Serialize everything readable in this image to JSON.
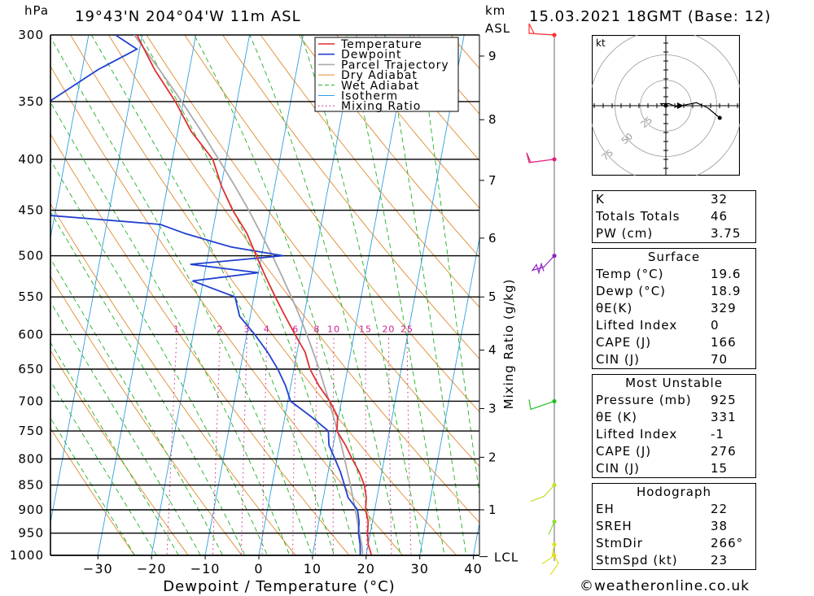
{
  "header": {
    "pressure_unit": "hPa",
    "location": "19°43'N  204°04'W  11m  ASL",
    "km_label": "km",
    "asl_label": "ASL",
    "datetime": "15.03.2021  18GMT  (Base: 12)"
  },
  "chart_data": {
    "type": "line",
    "xlabel": "Dewpoint / Temperature (°C)",
    "ylabel_right": "Mixing Ratio (g/kg)",
    "x_ticks": [
      -30,
      -20,
      -10,
      0,
      10,
      20,
      30,
      40
    ],
    "pressure_levels": [
      300,
      350,
      400,
      450,
      500,
      550,
      600,
      650,
      700,
      750,
      800,
      850,
      900,
      950,
      1000
    ],
    "km_ticks": [
      {
        "km": 1,
        "p": 900
      },
      {
        "km": 2,
        "p": 797
      },
      {
        "km": 3,
        "p": 712
      },
      {
        "km": 4,
        "p": 622
      },
      {
        "km": 5,
        "p": 550
      },
      {
        "km": 6,
        "p": 480
      },
      {
        "km": 7,
        "p": 420
      },
      {
        "km": 8,
        "p": 365
      },
      {
        "km": 9,
        "p": 315
      }
    ],
    "lcl_label": "LCL",
    "lcl_pressure": 1003,
    "mixing_ratio_labels": [
      1,
      2,
      3,
      4,
      6,
      8,
      10,
      15,
      20,
      25
    ],
    "legend": [
      "Temperature",
      "Dewpoint",
      "Parcel Trajectory",
      "Dry Adiabat",
      "Wet Adiabat",
      "Isotherm",
      "Mixing Ratio"
    ],
    "series": [
      {
        "name": "Temperature",
        "color": "#e03030",
        "points": [
          [
            1010,
            20.0
          ],
          [
            1000,
            21.0
          ],
          [
            975,
            20.0
          ],
          [
            950,
            19.5
          ],
          [
            925,
            19.2
          ],
          [
            900,
            18.3
          ],
          [
            875,
            18.0
          ],
          [
            850,
            17.2
          ],
          [
            825,
            15.8
          ],
          [
            800,
            14.0
          ],
          [
            775,
            12.3
          ],
          [
            750,
            10.2
          ],
          [
            725,
            9.8
          ],
          [
            700,
            7.8
          ],
          [
            675,
            5.2
          ],
          [
            650,
            3.0
          ],
          [
            625,
            1.5
          ],
          [
            600,
            -1.0
          ],
          [
            575,
            -3.5
          ],
          [
            550,
            -6.0
          ],
          [
            525,
            -8.5
          ],
          [
            500,
            -11.0
          ],
          [
            475,
            -13.5
          ],
          [
            450,
            -17.0
          ],
          [
            425,
            -20.0
          ],
          [
            400,
            -22.5
          ],
          [
            375,
            -27.5
          ],
          [
            350,
            -31.5
          ],
          [
            325,
            -36.5
          ],
          [
            300,
            -41.0
          ]
        ]
      },
      {
        "name": "Dewpoint",
        "color": "#2040d0",
        "points": [
          [
            1010,
            18.0
          ],
          [
            1000,
            18.9
          ],
          [
            975,
            18.5
          ],
          [
            950,
            17.8
          ],
          [
            925,
            17.5
          ],
          [
            900,
            16.8
          ],
          [
            875,
            14.6
          ],
          [
            850,
            13.5
          ],
          [
            825,
            12.3
          ],
          [
            800,
            10.8
          ],
          [
            775,
            9.2
          ],
          [
            750,
            8.6
          ],
          [
            725,
            4.8
          ],
          [
            700,
            0.5
          ],
          [
            675,
            -1.0
          ],
          [
            650,
            -3.0
          ],
          [
            625,
            -5.5
          ],
          [
            600,
            -8.5
          ],
          [
            575,
            -12.0
          ],
          [
            550,
            -13.5
          ],
          [
            530,
            -22.0
          ],
          [
            520,
            -10.0
          ],
          [
            510,
            -23.0
          ],
          [
            500,
            -6.0
          ],
          [
            490,
            -16.0
          ],
          [
            475,
            -25.0
          ],
          [
            465,
            -30.0
          ],
          [
            455,
            -52.0
          ],
          [
            450,
            -53.0
          ],
          [
            425,
            -53.0
          ],
          [
            400,
            -53.0
          ],
          [
            375,
            -55.0
          ],
          [
            350,
            -55.0
          ],
          [
            325,
            -47.0
          ],
          [
            310,
            -40.5
          ],
          [
            300,
            -45.0
          ]
        ]
      },
      {
        "name": "Parcel Trajectory",
        "color": "#aaaaaa",
        "points": [
          [
            1010,
            19.6
          ],
          [
            975,
            18.8
          ],
          [
            950,
            18.0
          ],
          [
            925,
            17.2
          ],
          [
            900,
            16.4
          ],
          [
            875,
            15.5
          ],
          [
            850,
            14.6
          ],
          [
            825,
            13.6
          ],
          [
            800,
            12.6
          ],
          [
            775,
            11.5
          ],
          [
            750,
            10.3
          ],
          [
            725,
            9.0
          ],
          [
            700,
            7.7
          ],
          [
            675,
            6.2
          ],
          [
            650,
            4.7
          ],
          [
            625,
            3.0
          ],
          [
            600,
            1.2
          ],
          [
            575,
            -0.8
          ],
          [
            550,
            -3.0
          ],
          [
            525,
            -5.4
          ],
          [
            500,
            -8.0
          ],
          [
            475,
            -10.9
          ],
          [
            450,
            -14.0
          ],
          [
            425,
            -17.5
          ],
          [
            400,
            -21.4
          ],
          [
            375,
            -25.6
          ],
          [
            350,
            -30.3
          ],
          [
            325,
            -35.6
          ],
          [
            300,
            -41.5
          ]
        ]
      }
    ],
    "wind_colors_by_level": [
      {
        "p": 300,
        "color": "#ff3030"
      },
      {
        "p": 400,
        "color": "#e0207a"
      },
      {
        "p": 500,
        "color": "#9020c0"
      },
      {
        "p": 700,
        "color": "#20c020"
      },
      {
        "p": 850,
        "color": "#c0e020"
      },
      {
        "p": 925,
        "color": "#90e030"
      },
      {
        "p": 975,
        "color": "#e0e020"
      },
      {
        "p": 1000,
        "color": "#e0e020"
      }
    ]
  },
  "hodograph": {
    "unit": "kt",
    "ring_labels": [
      25,
      50,
      75
    ],
    "trace_kt": [
      [
        0,
        0
      ],
      [
        -3,
        0
      ],
      [
        -5,
        2
      ],
      [
        3,
        2
      ],
      [
        8,
        0
      ],
      [
        3,
        2
      ],
      [
        8,
        0
      ],
      [
        10,
        -1
      ],
      [
        30,
        3
      ],
      [
        41,
        -2
      ],
      [
        53,
        -12
      ]
    ]
  },
  "indices": {
    "rows": [
      {
        "label": "K",
        "value": "32"
      },
      {
        "label": "Totals Totals",
        "value": "46"
      },
      {
        "label": "PW (cm)",
        "value": "3.75"
      }
    ],
    "surface": {
      "title": "Surface",
      "rows": [
        {
          "label": "Temp (°C)",
          "value": "19.6"
        },
        {
          "label": "Dewp (°C)",
          "value": "18.9"
        },
        {
          "label": "θE(K)",
          "value": "329"
        },
        {
          "label": "Lifted Index",
          "value": "0"
        },
        {
          "label": "CAPE (J)",
          "value": "166"
        },
        {
          "label": "CIN (J)",
          "value": "70"
        }
      ]
    },
    "most_unstable": {
      "title": "Most Unstable",
      "rows": [
        {
          "label": "Pressure (mb)",
          "value": "925"
        },
        {
          "label": "θE (K)",
          "value": "331"
        },
        {
          "label": "Lifted Index",
          "value": "-1"
        },
        {
          "label": "CAPE (J)",
          "value": "276"
        },
        {
          "label": "CIN (J)",
          "value": "15"
        }
      ]
    },
    "hodograph_stats": {
      "title": "Hodograph",
      "rows": [
        {
          "label": "EH",
          "value": "22"
        },
        {
          "label": "SREH",
          "value": "38"
        },
        {
          "label": "StmDir",
          "value": "266°"
        },
        {
          "label": "StmSpd (kt)",
          "value": "23"
        }
      ]
    }
  },
  "credit": "©weatheronline.co.uk"
}
